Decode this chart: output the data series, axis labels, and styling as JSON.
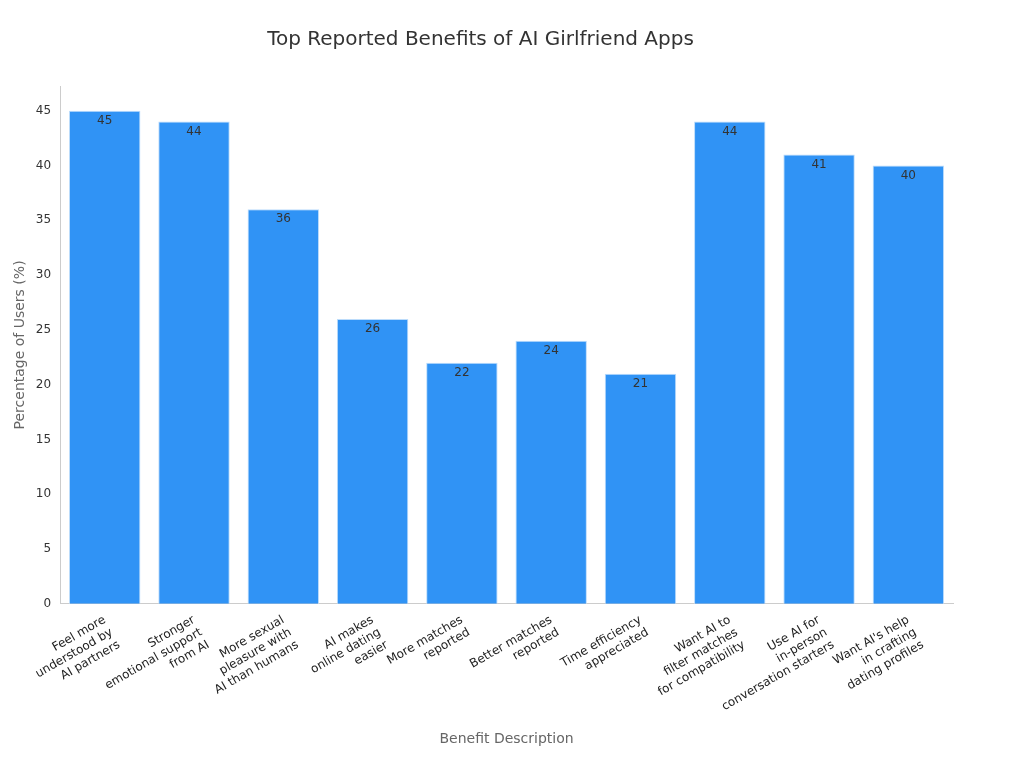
{
  "chart_data": {
    "type": "bar",
    "title": "Top Reported Benefits of AI Girlfriend Apps",
    "xlabel": "Benefit Description",
    "ylabel": "Percentage of Users (%)",
    "categories": [
      "Feel more\nunderstood by\nAI partners",
      "Stronger\nemotional support\nfrom AI",
      "More sexual\npleasure with\nAI than humans",
      "AI makes\nonline dating\neasier",
      "More matches\nreported",
      "Better matches\nreported",
      "Time efficiency\nappreciated",
      "Want AI to\nfilter matches\nfor compatibility",
      "Use AI for\nin-person\nconversation starters",
      "Want AI's help\nin crafting\ndating profiles"
    ],
    "values": [
      45,
      44,
      36,
      26,
      22,
      24,
      21,
      44,
      41,
      40
    ],
    "color": "#3093f5",
    "ylim": [
      0,
      47.25
    ],
    "yticks": [
      0,
      5,
      10,
      15,
      20,
      25,
      30,
      35,
      40,
      45
    ],
    "grid": false,
    "legend": false,
    "data_labels": true
  }
}
